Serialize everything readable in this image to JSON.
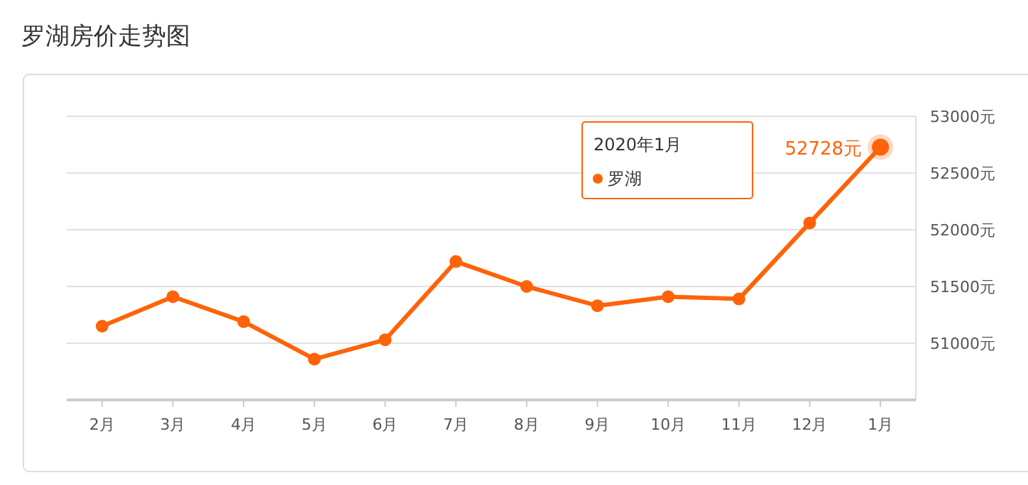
{
  "chart_data": {
    "type": "line",
    "title": "罗湖房价走势图",
    "categories": [
      "2月",
      "3月",
      "4月",
      "5月",
      "6月",
      "7月",
      "8月",
      "9月",
      "10月",
      "11月",
      "12月",
      "1月"
    ],
    "series": [
      {
        "name": "罗湖",
        "color": "#ff6309",
        "values": [
          51150,
          51410,
          51190,
          50860,
          51030,
          51720,
          51500,
          51330,
          51410,
          51390,
          52060,
          52728
        ],
        "value_labels": [
          null,
          null,
          null,
          null,
          null,
          null,
          null,
          null,
          null,
          null,
          null,
          "52728元"
        ]
      }
    ],
    "ylim": [
      50500,
      53000
    ],
    "yticks": [
      {
        "value": 51000,
        "label": "51000元"
      },
      {
        "value": 51500,
        "label": "51500元"
      },
      {
        "value": 52000,
        "label": "52000元"
      },
      {
        "value": 52500,
        "label": "52500元"
      },
      {
        "value": 53000,
        "label": "53000元"
      }
    ],
    "grid": "y",
    "marker": "circle",
    "line_style": "solid",
    "annotations": [
      "2020年1月"
    ]
  }
}
